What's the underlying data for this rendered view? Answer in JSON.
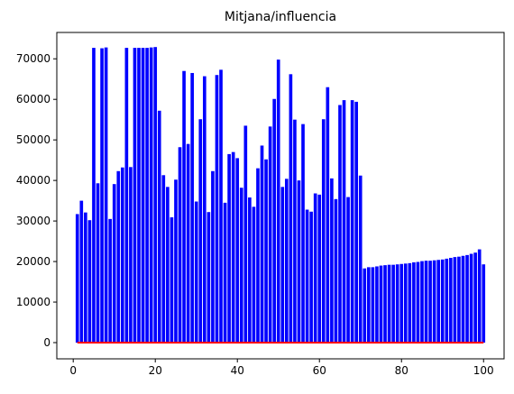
{
  "chart_data": {
    "type": "bar",
    "title": "Mitjana/influencia",
    "xlabel": "",
    "ylabel": "",
    "xlim": [
      -4,
      105
    ],
    "ylim": [
      -4000,
      76500
    ],
    "xticks": [
      0,
      20,
      40,
      60,
      80,
      100
    ],
    "xtick_labels": [
      "0",
      "20",
      "40",
      "60",
      "80",
      "100"
    ],
    "yticks": [
      0,
      10000,
      20000,
      30000,
      40000,
      50000,
      60000,
      70000
    ],
    "ytick_labels": [
      "0",
      "10000",
      "20000",
      "30000",
      "40000",
      "50000",
      "60000",
      "70000"
    ],
    "grid": false,
    "series": [
      {
        "color": "#0000ff",
        "x": [
          1,
          2,
          3,
          4,
          5,
          6,
          7,
          8,
          9,
          10,
          11,
          12,
          13,
          14,
          15,
          16,
          17,
          18,
          19,
          20,
          21,
          22,
          23,
          24,
          25,
          26,
          27,
          28,
          29,
          30,
          31,
          32,
          33,
          34,
          35,
          36,
          37,
          38,
          39,
          40,
          41,
          42,
          43,
          44,
          45,
          46,
          47,
          48,
          49,
          50,
          51,
          52,
          53,
          54,
          55,
          56,
          57,
          58,
          59,
          60,
          61,
          62,
          63,
          64,
          65,
          66,
          67,
          68,
          69,
          70,
          71,
          72,
          73,
          74,
          75,
          76,
          77,
          78,
          79,
          80,
          81,
          82,
          83,
          84,
          85,
          86,
          87,
          88,
          89,
          90,
          91,
          92,
          93,
          94,
          95,
          96,
          97,
          98,
          99,
          100
        ],
        "values": [
          31700,
          35000,
          32100,
          30200,
          72700,
          39300,
          72600,
          72800,
          30500,
          39100,
          42300,
          43200,
          72700,
          43300,
          72700,
          72700,
          72700,
          72700,
          72800,
          72900,
          57200,
          41300,
          38400,
          30900,
          40200,
          48200,
          67000,
          49000,
          66500,
          34800,
          55100,
          65700,
          32200,
          42300,
          66000,
          67300,
          34500,
          46500,
          47000,
          45500,
          38200,
          53500,
          35800,
          33500,
          43000,
          48600,
          45200,
          53300,
          60100,
          69800,
          38400,
          40400,
          66200,
          55000,
          40000,
          53900,
          32800,
          32300,
          36800,
          36500,
          55100,
          63000,
          40500,
          35400,
          58600,
          59800,
          35900,
          59800,
          59400,
          41200,
          18300,
          18600,
          18600,
          18800,
          19000,
          19100,
          19200,
          19200,
          19300,
          19400,
          19500,
          19600,
          19800,
          19900,
          20100,
          20200,
          20200,
          20300,
          20400,
          20500,
          20700,
          20900,
          21100,
          21200,
          21400,
          21600,
          21900,
          22200,
          23000,
          19300
        ]
      },
      {
        "color": "#ff0000",
        "x_start": 1,
        "x_end": 100,
        "value": 0
      }
    ]
  }
}
